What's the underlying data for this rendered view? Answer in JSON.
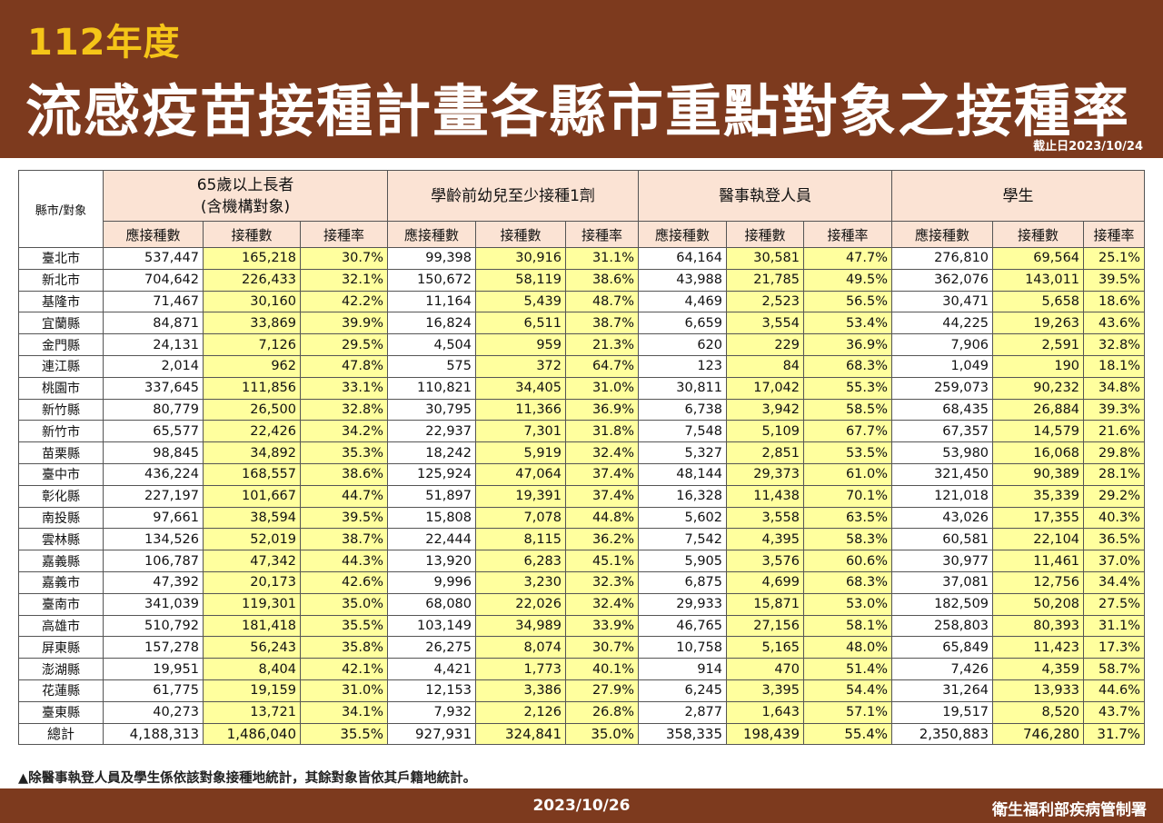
{
  "header": {
    "year": "112年度",
    "title": "流感疫苗接種計畫各縣市重點對象之接種率",
    "cutoff": "截止日2023/10/24"
  },
  "table": {
    "corner": "縣市/對象",
    "groups": [
      "65歲以上長者\n(含機構對象)",
      "學齡前幼兒至少接種1劑",
      "醫事執登人員",
      "學生"
    ],
    "subheaders": [
      "應接種數",
      "接種數",
      "接種率"
    ],
    "rows": [
      [
        "臺北市",
        "537,447",
        "165,218",
        "30.7%",
        "99,398",
        "30,916",
        "31.1%",
        "64,164",
        "30,581",
        "47.7%",
        "276,810",
        "69,564",
        "25.1%"
      ],
      [
        "新北市",
        "704,642",
        "226,433",
        "32.1%",
        "150,672",
        "58,119",
        "38.6%",
        "43,988",
        "21,785",
        "49.5%",
        "362,076",
        "143,011",
        "39.5%"
      ],
      [
        "基隆市",
        "71,467",
        "30,160",
        "42.2%",
        "11,164",
        "5,439",
        "48.7%",
        "4,469",
        "2,523",
        "56.5%",
        "30,471",
        "5,658",
        "18.6%"
      ],
      [
        "宜蘭縣",
        "84,871",
        "33,869",
        "39.9%",
        "16,824",
        "6,511",
        "38.7%",
        "6,659",
        "3,554",
        "53.4%",
        "44,225",
        "19,263",
        "43.6%"
      ],
      [
        "金門縣",
        "24,131",
        "7,126",
        "29.5%",
        "4,504",
        "959",
        "21.3%",
        "620",
        "229",
        "36.9%",
        "7,906",
        "2,591",
        "32.8%"
      ],
      [
        "連江縣",
        "2,014",
        "962",
        "47.8%",
        "575",
        "372",
        "64.7%",
        "123",
        "84",
        "68.3%",
        "1,049",
        "190",
        "18.1%"
      ],
      [
        "桃園市",
        "337,645",
        "111,856",
        "33.1%",
        "110,821",
        "34,405",
        "31.0%",
        "30,811",
        "17,042",
        "55.3%",
        "259,073",
        "90,232",
        "34.8%"
      ],
      [
        "新竹縣",
        "80,779",
        "26,500",
        "32.8%",
        "30,795",
        "11,366",
        "36.9%",
        "6,738",
        "3,942",
        "58.5%",
        "68,435",
        "26,884",
        "39.3%"
      ],
      [
        "新竹市",
        "65,577",
        "22,426",
        "34.2%",
        "22,937",
        "7,301",
        "31.8%",
        "7,548",
        "5,109",
        "67.7%",
        "67,357",
        "14,579",
        "21.6%"
      ],
      [
        "苗栗縣",
        "98,845",
        "34,892",
        "35.3%",
        "18,242",
        "5,919",
        "32.4%",
        "5,327",
        "2,851",
        "53.5%",
        "53,980",
        "16,068",
        "29.8%"
      ],
      [
        "臺中市",
        "436,224",
        "168,557",
        "38.6%",
        "125,924",
        "47,064",
        "37.4%",
        "48,144",
        "29,373",
        "61.0%",
        "321,450",
        "90,389",
        "28.1%"
      ],
      [
        "彰化縣",
        "227,197",
        "101,667",
        "44.7%",
        "51,897",
        "19,391",
        "37.4%",
        "16,328",
        "11,438",
        "70.1%",
        "121,018",
        "35,339",
        "29.2%"
      ],
      [
        "南投縣",
        "97,661",
        "38,594",
        "39.5%",
        "15,808",
        "7,078",
        "44.8%",
        "5,602",
        "3,558",
        "63.5%",
        "43,026",
        "17,355",
        "40.3%"
      ],
      [
        "雲林縣",
        "134,526",
        "52,019",
        "38.7%",
        "22,444",
        "8,115",
        "36.2%",
        "7,542",
        "4,395",
        "58.3%",
        "60,581",
        "22,104",
        "36.5%"
      ],
      [
        "嘉義縣",
        "106,787",
        "47,342",
        "44.3%",
        "13,920",
        "6,283",
        "45.1%",
        "5,905",
        "3,576",
        "60.6%",
        "30,977",
        "11,461",
        "37.0%"
      ],
      [
        "嘉義市",
        "47,392",
        "20,173",
        "42.6%",
        "9,996",
        "3,230",
        "32.3%",
        "6,875",
        "4,699",
        "68.3%",
        "37,081",
        "12,756",
        "34.4%"
      ],
      [
        "臺南市",
        "341,039",
        "119,301",
        "35.0%",
        "68,080",
        "22,026",
        "32.4%",
        "29,933",
        "15,871",
        "53.0%",
        "182,509",
        "50,208",
        "27.5%"
      ],
      [
        "高雄市",
        "510,792",
        "181,418",
        "35.5%",
        "103,149",
        "34,989",
        "33.9%",
        "46,765",
        "27,156",
        "58.1%",
        "258,803",
        "80,393",
        "31.1%"
      ],
      [
        "屏東縣",
        "157,278",
        "56,243",
        "35.8%",
        "26,275",
        "8,074",
        "30.7%",
        "10,758",
        "5,165",
        "48.0%",
        "65,849",
        "11,423",
        "17.3%"
      ],
      [
        "澎湖縣",
        "19,951",
        "8,404",
        "42.1%",
        "4,421",
        "1,773",
        "40.1%",
        "914",
        "470",
        "51.4%",
        "7,426",
        "4,359",
        "58.7%"
      ],
      [
        "花蓮縣",
        "61,775",
        "19,159",
        "31.0%",
        "12,153",
        "3,386",
        "27.9%",
        "6,245",
        "3,395",
        "54.4%",
        "31,264",
        "13,933",
        "44.6%"
      ],
      [
        "臺東縣",
        "40,273",
        "13,721",
        "34.1%",
        "7,932",
        "2,126",
        "26.8%",
        "2,877",
        "1,643",
        "57.1%",
        "19,517",
        "8,520",
        "43.7%"
      ]
    ],
    "total": [
      "總計",
      "4,188,313",
      "1,486,040",
      "35.5%",
      "927,931",
      "324,841",
      "35.0%",
      "358,335",
      "198,439",
      "55.4%",
      "2,350,883",
      "746,280",
      "31.7%"
    ]
  },
  "footnote": "▲除醫事執登人員及學生係依該對象接種地統計，其餘對象皆依其戶籍地統計。",
  "footer": {
    "date": "2023/10/26",
    "agency": "衛生福利部疾病管制署"
  },
  "colors": {
    "banner": "#7d3a1e",
    "year_text": "#f5c518",
    "header_fill": "#fbe3d4",
    "highlight_fill": "#ffff9e"
  }
}
